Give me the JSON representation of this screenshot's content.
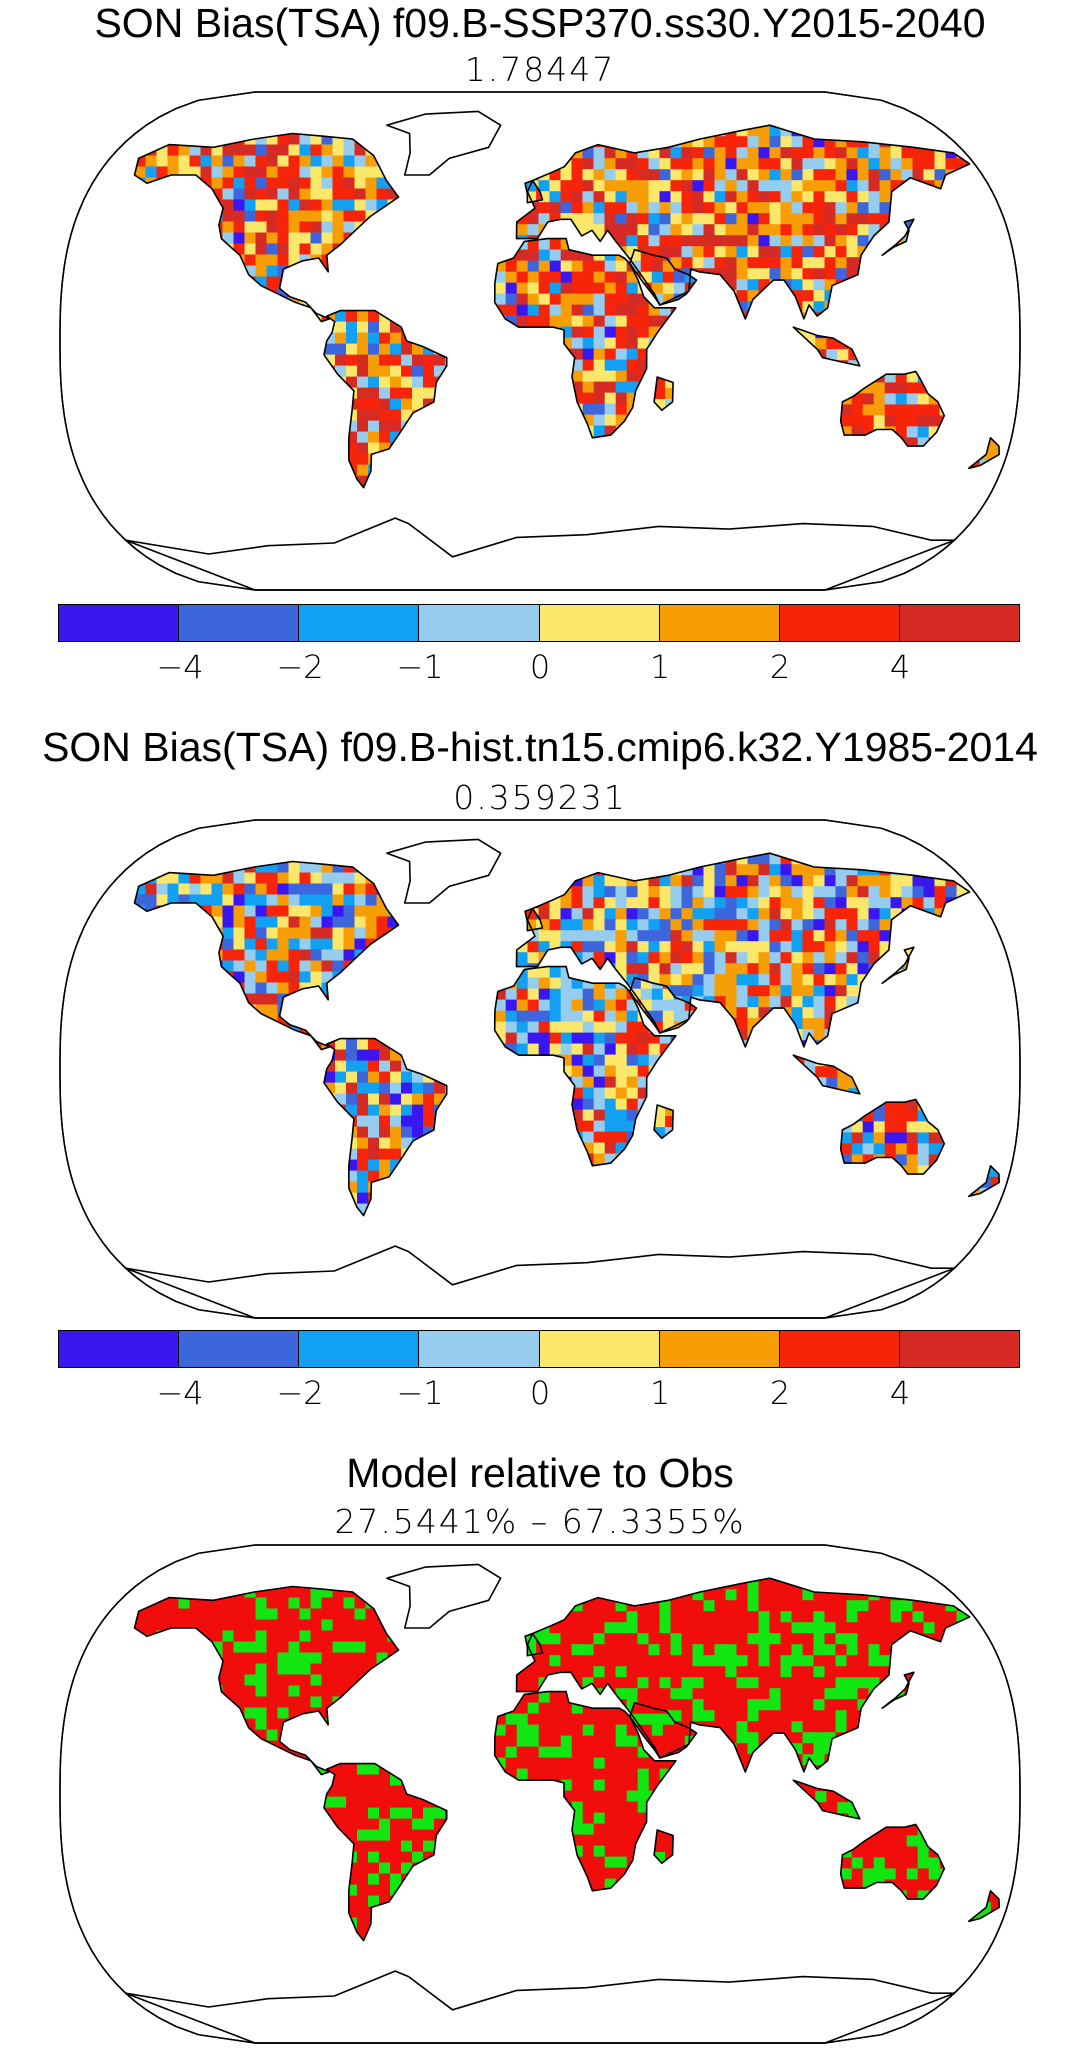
{
  "panels": [
    {
      "title": "SON Bias(TSA) f09.B-SSP370.ss30.Y2015-2040",
      "subtitle": "1.78447",
      "fill_scheme": "warm_bias"
    },
    {
      "title": "SON Bias(TSA) f09.B-hist.tn15.cmip6.k32.Y1985-2014",
      "subtitle": "0.359231",
      "fill_scheme": "mixed_bias"
    },
    {
      "title": "Model relative to Obs",
      "subtitle": "27.5441% – 67.3355%",
      "fill_scheme": "relative"
    }
  ],
  "colorbar": {
    "colors": [
      "#3a16f0",
      "#3d66dc",
      "#12a0f2",
      "#96cdee",
      "#fbe86a",
      "#f79d05",
      "#f6250a",
      "#d62b24"
    ],
    "tick_labels": [
      "−4",
      "−2",
      "−1",
      "0",
      "1",
      "2",
      "4"
    ]
  },
  "relative_colors": {
    "model_better": "#f20d0d",
    "model_worse": "#12e612"
  }
}
